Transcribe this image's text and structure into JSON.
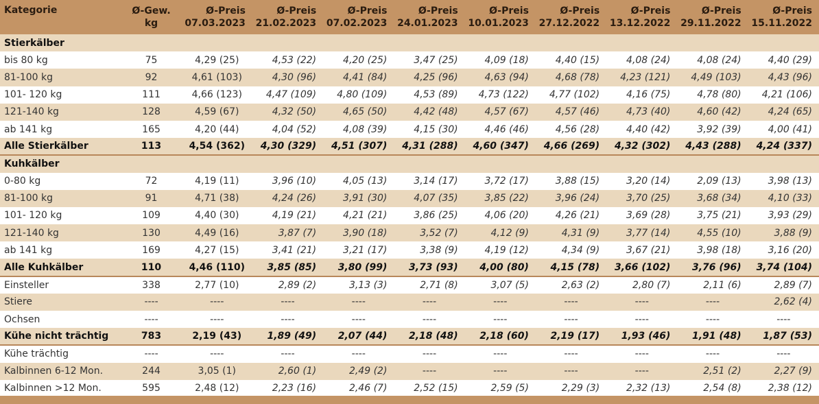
{
  "header": {
    "kategorie": "Kategorie",
    "gew_line1": "Ø-Gew.",
    "gew_line2": "kg",
    "price_label": "Ø-Preis",
    "dates": [
      "07.03.2023",
      "21.02.2023",
      "07.02.2023",
      "24.01.2023",
      "10.01.2023",
      "27.12.2022",
      "13.12.2022",
      "29.11.2022",
      "15.11.2022"
    ]
  },
  "rows": [
    {
      "type": "section",
      "label": "Stierkälber"
    },
    {
      "type": "data",
      "label": "bis 80 kg",
      "gew": "75",
      "prices": [
        "4,29 (25)",
        "4,53 (22)",
        "4,20 (25)",
        "3,47 (25)",
        "4,09 (18)",
        "4,40 (15)",
        "4,08 (24)",
        "4,08 (24)",
        "4,40 (29)"
      ]
    },
    {
      "type": "data",
      "label": "81-100 kg",
      "gew": "92",
      "prices": [
        "4,61 (103)",
        "4,30 (96)",
        "4,41 (84)",
        "4,25 (96)",
        "4,63 (94)",
        "4,68 (78)",
        "4,23 (121)",
        "4,49 (103)",
        "4,43 (96)"
      ]
    },
    {
      "type": "data",
      "label": "101- 120 kg",
      "gew": "111",
      "prices": [
        "4,66 (123)",
        "4,47 (109)",
        "4,80 (109)",
        "4,53 (89)",
        "4,73 (122)",
        "4,77 (102)",
        "4,16 (75)",
        "4,78 (80)",
        "4,21 (106)"
      ]
    },
    {
      "type": "data",
      "label": "121-140 kg",
      "gew": "128",
      "prices": [
        "4,59 (67)",
        "4,32 (50)",
        "4,65 (50)",
        "4,42 (48)",
        "4,57 (67)",
        "4,57 (46)",
        "4,73 (40)",
        "4,60 (42)",
        "4,24 (65)"
      ]
    },
    {
      "type": "data",
      "label": "ab 141 kg",
      "gew": "165",
      "prices": [
        "4,20 (44)",
        "4,04 (52)",
        "4,08 (39)",
        "4,15 (30)",
        "4,46 (46)",
        "4,56 (28)",
        "4,40 (42)",
        "3,92 (39)",
        "4,00 (41)"
      ]
    },
    {
      "type": "total",
      "label": "Alle Stierkälber",
      "gew": "113",
      "prices": [
        "4,54 (362)",
        "4,30 (329)",
        "4,51 (307)",
        "4,31 (288)",
        "4,60 (347)",
        "4,66 (269)",
        "4,32 (302)",
        "4,43 (288)",
        "4,24 (337)"
      ]
    },
    {
      "type": "section",
      "label": "Kuhkälber"
    },
    {
      "type": "data",
      "label": "0-80 kg",
      "gew": "72",
      "prices": [
        "4,19 (11)",
        "3,96 (10)",
        "4,05 (13)",
        "3,14 (17)",
        "3,72 (17)",
        "3,88 (15)",
        "3,20 (14)",
        "2,09 (13)",
        "3,98 (13)"
      ]
    },
    {
      "type": "data",
      "label": "81-100 kg",
      "gew": "91",
      "prices": [
        "4,71 (38)",
        "4,24 (26)",
        "3,91 (30)",
        "4,07 (35)",
        "3,85 (22)",
        "3,96 (24)",
        "3,70 (25)",
        "3,68 (34)",
        "4,10 (33)"
      ]
    },
    {
      "type": "data",
      "label": "101- 120 kg",
      "gew": "109",
      "prices": [
        "4,40 (30)",
        "4,19 (21)",
        "4,21 (21)",
        "3,86 (25)",
        "4,06 (20)",
        "4,26 (21)",
        "3,69 (28)",
        "3,75 (21)",
        "3,93 (29)"
      ]
    },
    {
      "type": "data",
      "label": "121-140 kg",
      "gew": "130",
      "prices": [
        "4,49 (16)",
        "3,87 (7)",
        "3,90 (18)",
        "3,52 (7)",
        "4,12 (9)",
        "4,31 (9)",
        "3,77 (14)",
        "4,55 (10)",
        "3,88 (9)"
      ]
    },
    {
      "type": "data",
      "label": "ab 141 kg",
      "gew": "169",
      "prices": [
        "4,27 (15)",
        "3,41 (21)",
        "3,21 (17)",
        "3,38 (9)",
        "4,19 (12)",
        "4,34 (9)",
        "3,67 (21)",
        "3,98 (18)",
        "3,16 (20)"
      ]
    },
    {
      "type": "total",
      "label": "Alle Kuhkälber",
      "gew": "110",
      "prices": [
        "4,46 (110)",
        "3,85 (85)",
        "3,80 (99)",
        "3,73 (93)",
        "4,00 (80)",
        "4,15 (78)",
        "3,66 (102)",
        "3,76 (96)",
        "3,74 (104)"
      ]
    },
    {
      "type": "data",
      "label": "Einsteller",
      "gew": "338",
      "prices": [
        "2,77 (10)",
        "2,89 (2)",
        "3,13 (3)",
        "2,71 (8)",
        "3,07 (5)",
        "2,63 (2)",
        "2,80 (7)",
        "2,11 (6)",
        "2,89 (7)"
      ]
    },
    {
      "type": "data",
      "label": "Stiere",
      "gew": "----",
      "prices": [
        "----",
        "----",
        "----",
        "----",
        "----",
        "----",
        "----",
        "----",
        "2,62 (4)"
      ]
    },
    {
      "type": "data",
      "label": "Ochsen",
      "gew": "----",
      "prices": [
        "----",
        "----",
        "----",
        "----",
        "----",
        "----",
        "----",
        "----",
        "----"
      ]
    },
    {
      "type": "total",
      "label": "Kühe nicht trächtig",
      "gew": "783",
      "prices": [
        "2,19 (43)",
        "1,89 (49)",
        "2,07 (44)",
        "2,18 (48)",
        "2,18 (60)",
        "2,19 (17)",
        "1,93 (46)",
        "1,91 (48)",
        "1,87 (53)"
      ]
    },
    {
      "type": "data",
      "label": "Kühe trächtig",
      "gew": "----",
      "prices": [
        "----",
        "----",
        "----",
        "----",
        "----",
        "----",
        "----",
        "----",
        "----"
      ]
    },
    {
      "type": "data",
      "label": "Kalbinnen 6-12 Mon.",
      "gew": "244",
      "prices": [
        "3,05 (1)",
        "2,60 (1)",
        "2,49 (2)",
        "----",
        "----",
        "----",
        "----",
        "2,51 (2)",
        "2,27 (9)"
      ]
    },
    {
      "type": "data",
      "label": "Kalbinnen >12 Mon.",
      "gew": "595",
      "prices": [
        "2,48 (12)",
        "2,23 (16)",
        "2,46 (7)",
        "2,52 (15)",
        "2,59 (5)",
        "2,29 (3)",
        "2,32 (13)",
        "2,54 (8)",
        "2,38 (12)"
      ]
    }
  ]
}
